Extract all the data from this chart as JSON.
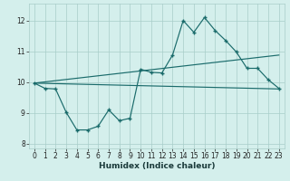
{
  "xlabel": "Humidex (Indice chaleur)",
  "xlim": [
    -0.5,
    23.5
  ],
  "ylim": [
    7.85,
    12.55
  ],
  "yticks": [
    8,
    9,
    10,
    11,
    12
  ],
  "xticks": [
    0,
    1,
    2,
    3,
    4,
    5,
    6,
    7,
    8,
    9,
    10,
    11,
    12,
    13,
    14,
    15,
    16,
    17,
    18,
    19,
    20,
    21,
    22,
    23
  ],
  "bg_color": "#d4efec",
  "grid_color": "#a8cdc9",
  "line_color": "#1a6b6b",
  "line1_x": [
    0,
    1,
    2,
    3,
    4,
    5,
    6,
    7,
    8,
    9,
    10,
    11,
    12,
    13,
    14,
    15,
    16,
    17,
    18,
    19,
    20,
    21,
    22,
    23
  ],
  "line1_y": [
    9.97,
    9.8,
    9.78,
    9.02,
    8.45,
    8.45,
    8.57,
    9.1,
    8.75,
    8.83,
    10.42,
    10.32,
    10.3,
    10.88,
    12.0,
    11.62,
    12.1,
    11.68,
    11.35,
    10.98,
    10.45,
    10.45,
    10.08,
    9.8
  ],
  "line2_x": [
    0,
    23
  ],
  "line2_y": [
    9.97,
    9.78
  ],
  "line3_x": [
    0,
    23
  ],
  "line3_y": [
    9.97,
    10.88
  ]
}
